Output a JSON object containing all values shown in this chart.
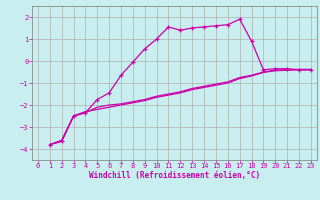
{
  "xlabel": "Windchill (Refroidissement éolien,°C)",
  "bg_color": "#c8eef0",
  "grid_color": "#b0b0b0",
  "line_color": "#cc00aa",
  "spine_color": "#7a7a7a",
  "xlim": [
    -0.5,
    23.5
  ],
  "ylim": [
    -4.5,
    2.5
  ],
  "xticks": [
    0,
    1,
    2,
    3,
    4,
    5,
    6,
    7,
    8,
    9,
    10,
    11,
    12,
    13,
    14,
    15,
    16,
    17,
    18,
    19,
    20,
    21,
    22,
    23
  ],
  "yticks": [
    -4,
    -3,
    -2,
    -1,
    0,
    1,
    2
  ],
  "curve1_x": [
    1,
    2,
    3,
    4,
    5,
    6,
    7,
    8,
    9,
    10,
    11,
    12,
    13,
    14,
    15,
    16,
    17,
    18,
    19,
    20,
    21,
    22,
    23
  ],
  "curve1_y": [
    -3.8,
    -3.65,
    -2.5,
    -2.35,
    -1.75,
    -1.45,
    -0.65,
    -0.05,
    0.55,
    1.0,
    1.55,
    1.4,
    1.5,
    1.55,
    1.6,
    1.65,
    1.9,
    0.9,
    -0.4,
    -0.35,
    -0.35,
    -0.4,
    -0.4
  ],
  "curve2_x": [
    1,
    2,
    3,
    4,
    5,
    6,
    7,
    8,
    9,
    10,
    11,
    12,
    13,
    14,
    15,
    16,
    17,
    18,
    19,
    20,
    21,
    22,
    23
  ],
  "curve2_y": [
    -3.8,
    -3.65,
    -2.5,
    -2.35,
    -2.1,
    -2.0,
    -1.95,
    -1.85,
    -1.75,
    -1.6,
    -1.5,
    -1.4,
    -1.25,
    -1.15,
    -1.05,
    -0.95,
    -0.75,
    -0.65,
    -0.5,
    -0.42,
    -0.4,
    -0.38,
    -0.38
  ],
  "curve3_x": [
    1,
    2,
    3,
    4,
    5,
    6,
    7,
    8,
    9,
    10,
    11,
    12,
    13,
    14,
    15,
    16,
    17,
    18,
    19,
    20,
    21,
    22,
    23
  ],
  "curve3_y": [
    -3.8,
    -3.6,
    -2.5,
    -2.3,
    -2.2,
    -2.1,
    -2.0,
    -1.9,
    -1.8,
    -1.65,
    -1.55,
    -1.45,
    -1.3,
    -1.2,
    -1.1,
    -1.0,
    -0.8,
    -0.68,
    -0.52,
    -0.44,
    -0.42,
    -0.4,
    -0.4
  ],
  "xlabel_fontsize": 5.5,
  "tick_fontsize": 5.0
}
